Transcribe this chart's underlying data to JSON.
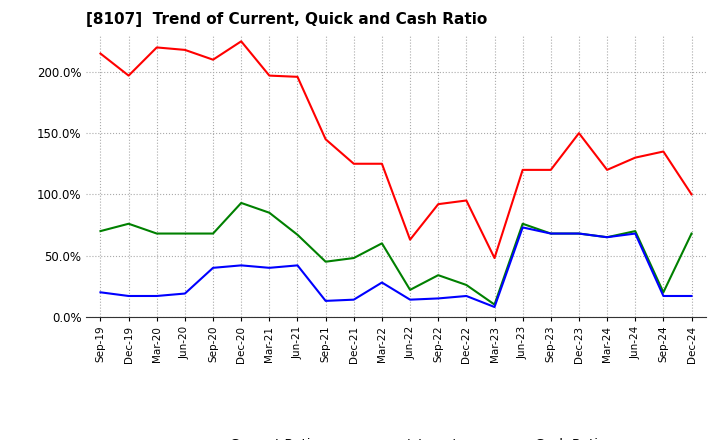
{
  "title": "[8107]  Trend of Current, Quick and Cash Ratio",
  "labels": [
    "Sep-19",
    "Dec-19",
    "Mar-20",
    "Jun-20",
    "Sep-20",
    "Dec-20",
    "Mar-21",
    "Jun-21",
    "Sep-21",
    "Dec-21",
    "Mar-22",
    "Jun-22",
    "Sep-22",
    "Dec-22",
    "Mar-23",
    "Jun-23",
    "Sep-23",
    "Dec-23",
    "Mar-24",
    "Jun-24",
    "Sep-24",
    "Dec-24"
  ],
  "current_ratio": [
    215,
    197,
    220,
    218,
    210,
    225,
    197,
    196,
    145,
    125,
    125,
    63,
    92,
    95,
    48,
    120,
    120,
    150,
    120,
    130,
    135,
    100
  ],
  "quick_ratio": [
    70,
    76,
    68,
    68,
    68,
    93,
    85,
    67,
    45,
    48,
    60,
    22,
    34,
    26,
    10,
    76,
    68,
    68,
    65,
    70,
    20,
    68
  ],
  "cash_ratio": [
    20,
    17,
    17,
    19,
    40,
    42,
    40,
    42,
    13,
    14,
    28,
    14,
    15,
    17,
    8,
    73,
    68,
    68,
    65,
    68,
    17,
    17
  ],
  "current_color": "#ff0000",
  "quick_color": "#008000",
  "cash_color": "#0000ff",
  "bg_color": "#ffffff",
  "plot_bg_color": "#ffffff",
  "grid_color": "#aaaaaa",
  "ylim": [
    0,
    230
  ],
  "yticks": [
    0,
    50,
    100,
    150,
    200
  ],
  "ytick_labels": [
    "0.0%",
    "50.0%",
    "100.0%",
    "150.0%",
    "200.0%"
  ]
}
